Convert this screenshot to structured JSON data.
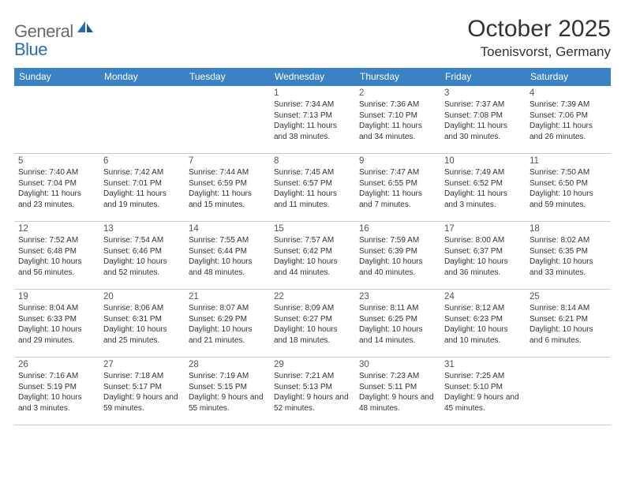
{
  "logo": {
    "general": "General",
    "blue": "Blue"
  },
  "title": "October 2025",
  "location": "Toenisvorst, Germany",
  "colors": {
    "header_bg": "#3b82c4",
    "header_text": "#ffffff",
    "logo_gray": "#6a6a6a",
    "logo_blue": "#2a6db5",
    "rule": "#3b82c4"
  },
  "day_names": [
    "Sunday",
    "Monday",
    "Tuesday",
    "Wednesday",
    "Thursday",
    "Friday",
    "Saturday"
  ],
  "weeks": [
    [
      null,
      null,
      null,
      {
        "n": "1",
        "sr": "7:34 AM",
        "ss": "7:13 PM",
        "dl": "11 hours and 38 minutes."
      },
      {
        "n": "2",
        "sr": "7:36 AM",
        "ss": "7:10 PM",
        "dl": "11 hours and 34 minutes."
      },
      {
        "n": "3",
        "sr": "7:37 AM",
        "ss": "7:08 PM",
        "dl": "11 hours and 30 minutes."
      },
      {
        "n": "4",
        "sr": "7:39 AM",
        "ss": "7:06 PM",
        "dl": "11 hours and 26 minutes."
      }
    ],
    [
      {
        "n": "5",
        "sr": "7:40 AM",
        "ss": "7:04 PM",
        "dl": "11 hours and 23 minutes."
      },
      {
        "n": "6",
        "sr": "7:42 AM",
        "ss": "7:01 PM",
        "dl": "11 hours and 19 minutes."
      },
      {
        "n": "7",
        "sr": "7:44 AM",
        "ss": "6:59 PM",
        "dl": "11 hours and 15 minutes."
      },
      {
        "n": "8",
        "sr": "7:45 AM",
        "ss": "6:57 PM",
        "dl": "11 hours and 11 minutes."
      },
      {
        "n": "9",
        "sr": "7:47 AM",
        "ss": "6:55 PM",
        "dl": "11 hours and 7 minutes."
      },
      {
        "n": "10",
        "sr": "7:49 AM",
        "ss": "6:52 PM",
        "dl": "11 hours and 3 minutes."
      },
      {
        "n": "11",
        "sr": "7:50 AM",
        "ss": "6:50 PM",
        "dl": "10 hours and 59 minutes."
      }
    ],
    [
      {
        "n": "12",
        "sr": "7:52 AM",
        "ss": "6:48 PM",
        "dl": "10 hours and 56 minutes."
      },
      {
        "n": "13",
        "sr": "7:54 AM",
        "ss": "6:46 PM",
        "dl": "10 hours and 52 minutes."
      },
      {
        "n": "14",
        "sr": "7:55 AM",
        "ss": "6:44 PM",
        "dl": "10 hours and 48 minutes."
      },
      {
        "n": "15",
        "sr": "7:57 AM",
        "ss": "6:42 PM",
        "dl": "10 hours and 44 minutes."
      },
      {
        "n": "16",
        "sr": "7:59 AM",
        "ss": "6:39 PM",
        "dl": "10 hours and 40 minutes."
      },
      {
        "n": "17",
        "sr": "8:00 AM",
        "ss": "6:37 PM",
        "dl": "10 hours and 36 minutes."
      },
      {
        "n": "18",
        "sr": "8:02 AM",
        "ss": "6:35 PM",
        "dl": "10 hours and 33 minutes."
      }
    ],
    [
      {
        "n": "19",
        "sr": "8:04 AM",
        "ss": "6:33 PM",
        "dl": "10 hours and 29 minutes."
      },
      {
        "n": "20",
        "sr": "8:06 AM",
        "ss": "6:31 PM",
        "dl": "10 hours and 25 minutes."
      },
      {
        "n": "21",
        "sr": "8:07 AM",
        "ss": "6:29 PM",
        "dl": "10 hours and 21 minutes."
      },
      {
        "n": "22",
        "sr": "8:09 AM",
        "ss": "6:27 PM",
        "dl": "10 hours and 18 minutes."
      },
      {
        "n": "23",
        "sr": "8:11 AM",
        "ss": "6:25 PM",
        "dl": "10 hours and 14 minutes."
      },
      {
        "n": "24",
        "sr": "8:12 AM",
        "ss": "6:23 PM",
        "dl": "10 hours and 10 minutes."
      },
      {
        "n": "25",
        "sr": "8:14 AM",
        "ss": "6:21 PM",
        "dl": "10 hours and 6 minutes."
      }
    ],
    [
      {
        "n": "26",
        "sr": "7:16 AM",
        "ss": "5:19 PM",
        "dl": "10 hours and 3 minutes."
      },
      {
        "n": "27",
        "sr": "7:18 AM",
        "ss": "5:17 PM",
        "dl": "9 hours and 59 minutes."
      },
      {
        "n": "28",
        "sr": "7:19 AM",
        "ss": "5:15 PM",
        "dl": "9 hours and 55 minutes."
      },
      {
        "n": "29",
        "sr": "7:21 AM",
        "ss": "5:13 PM",
        "dl": "9 hours and 52 minutes."
      },
      {
        "n": "30",
        "sr": "7:23 AM",
        "ss": "5:11 PM",
        "dl": "9 hours and 48 minutes."
      },
      {
        "n": "31",
        "sr": "7:25 AM",
        "ss": "5:10 PM",
        "dl": "9 hours and 45 minutes."
      },
      null
    ]
  ],
  "labels": {
    "sunrise": "Sunrise:",
    "sunset": "Sunset:",
    "daylight": "Daylight:"
  }
}
